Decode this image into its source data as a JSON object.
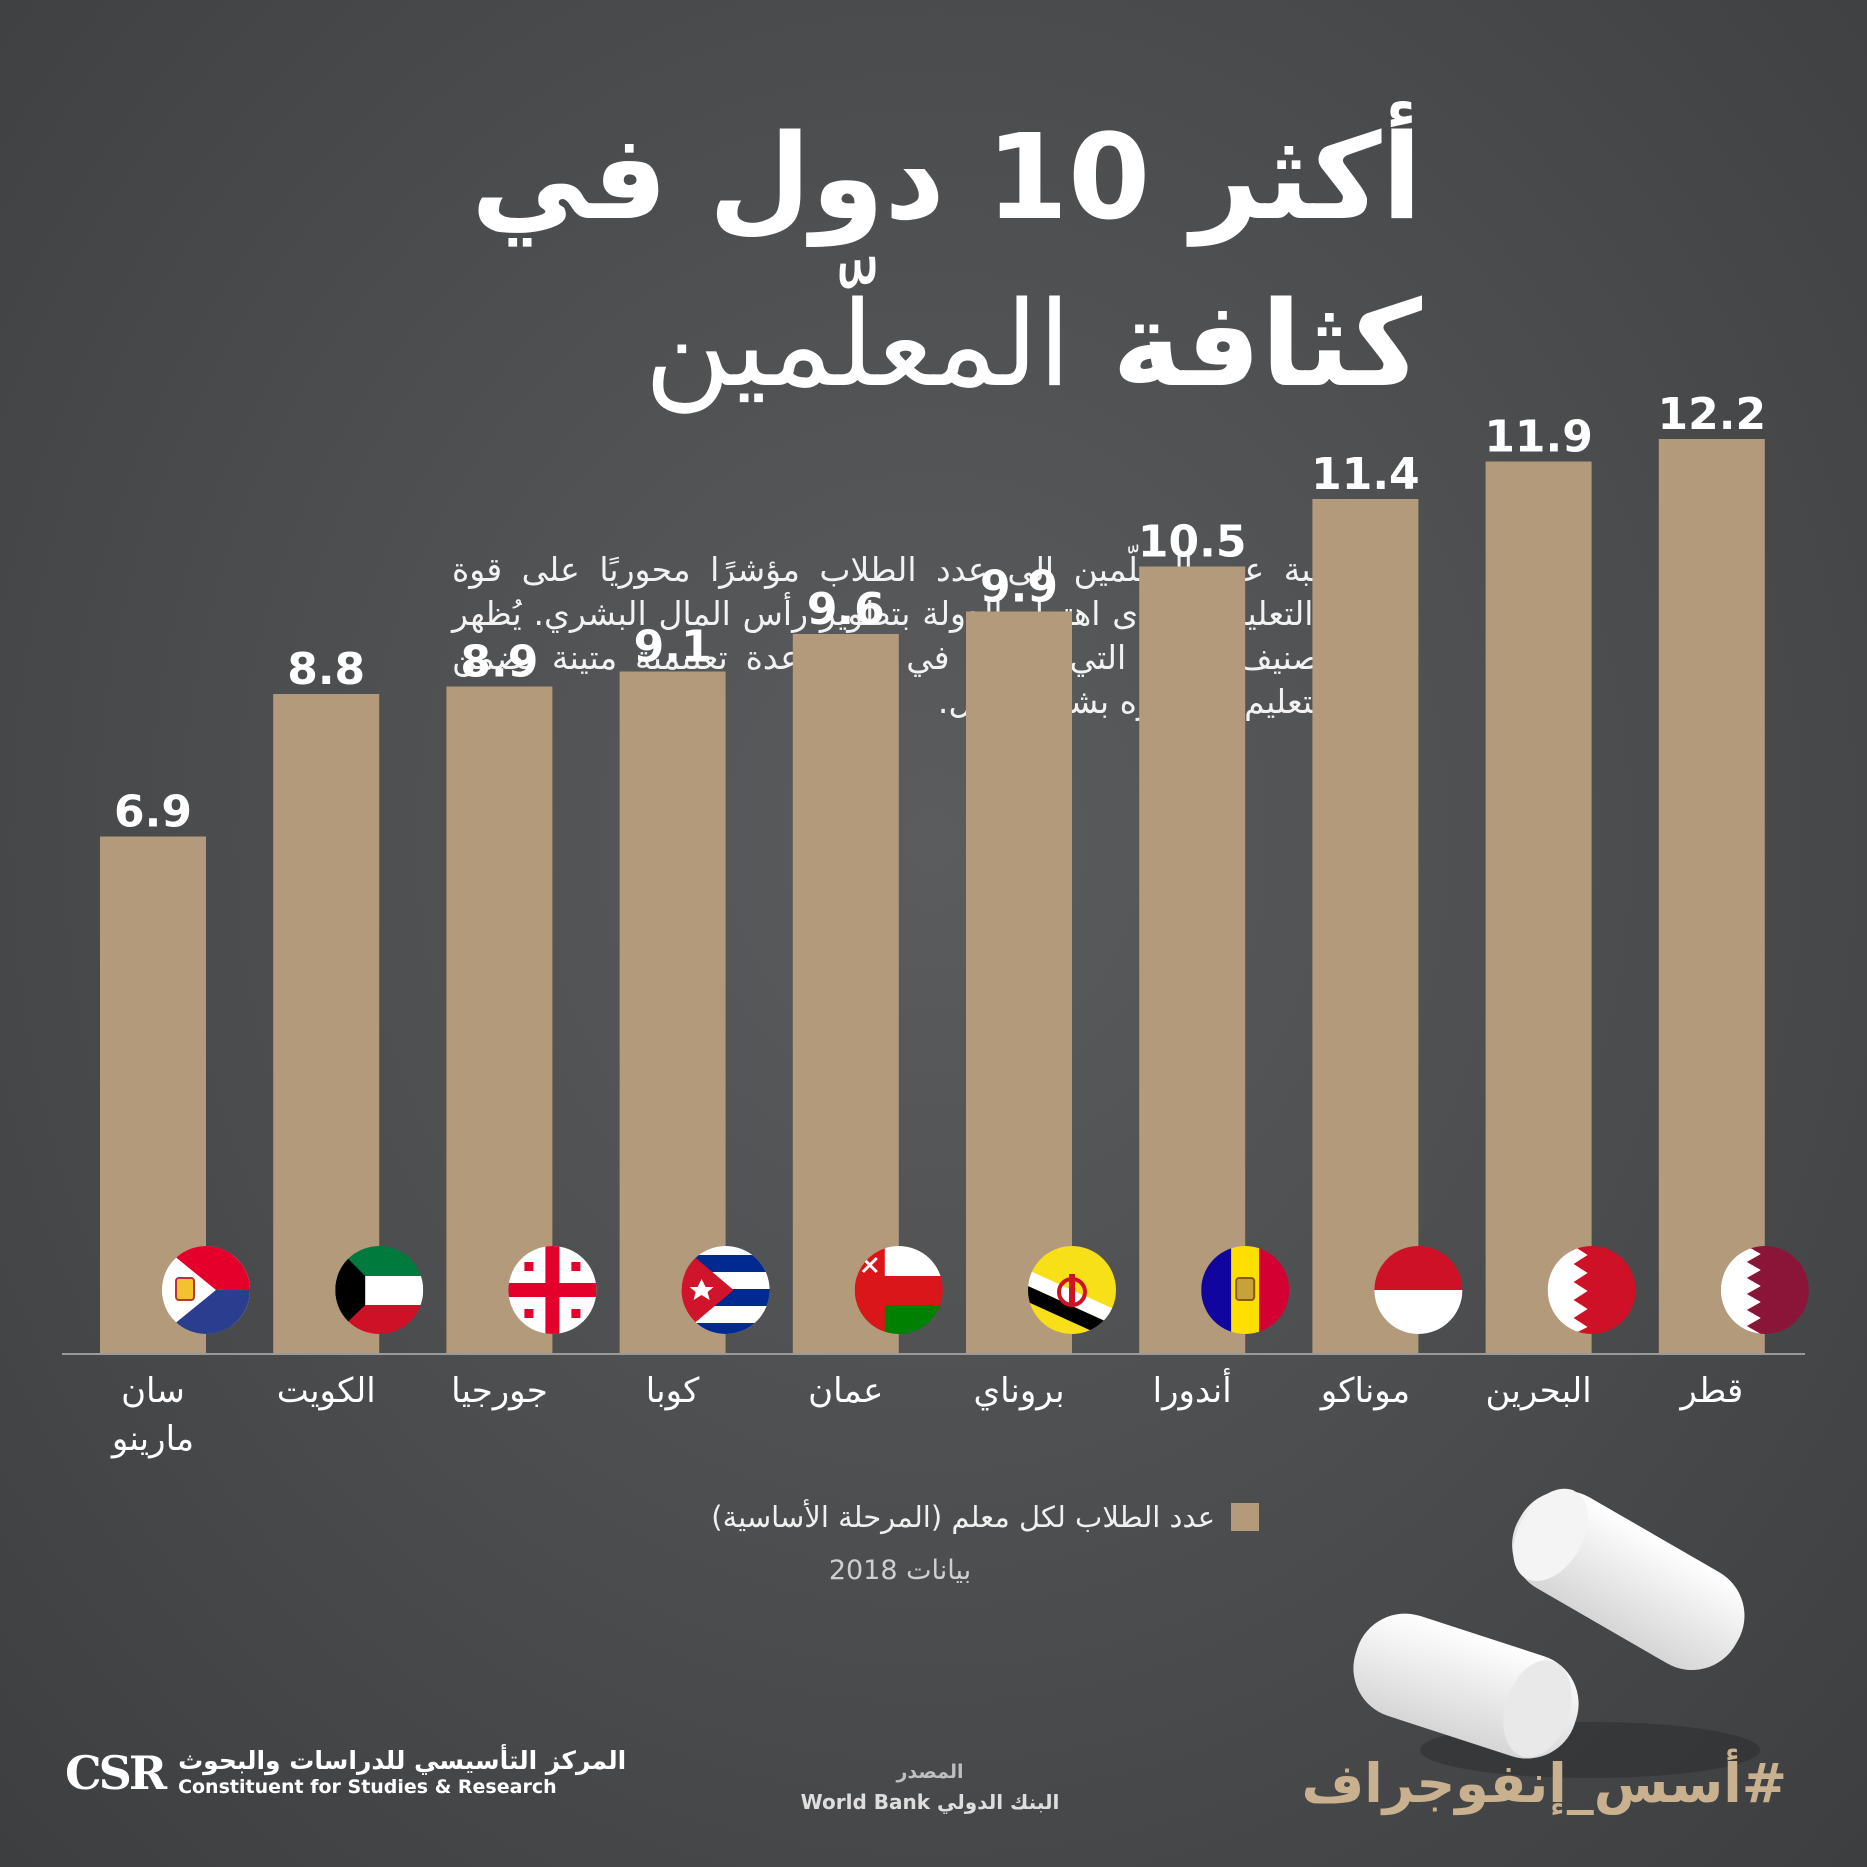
{
  "title": {
    "line1": "أكثر 10 دول في",
    "line2_bold": "كثافة",
    "line2_light": "المعلّمين"
  },
  "description": "تعدّ نسبة عدد المعلّمين إلى عدد الطلاب مؤشرًا محوريًا على قوة النظام التعليمي ومدى اهتمام الدولة بتطوير رأس المال البشري. يُظهر هذا التصنيف الدول التي نجحت في بناء قاعدة تعليمية متينة تضمن جودة التعليم، وتوفيره بشكل عادل.",
  "chart_data": {
    "type": "bar",
    "categories": [
      "سان مارينو",
      "الكويت",
      "جورجيا",
      "كوبا",
      "عمان",
      "بروناي",
      "أندورا",
      "موناكو",
      "البحرين",
      "قطر"
    ],
    "series": [
      {
        "name": "عدد الطلاب لكل معلم (المرحلة الأساسية)",
        "values": [
          6.9,
          8.8,
          8.9,
          9.1,
          9.6,
          9.9,
          10.5,
          11.4,
          11.9,
          12.2
        ]
      }
    ],
    "ylim": [
      0,
      12.2
    ],
    "grid": false,
    "legend_position": "bottom",
    "bar_color": "#b29a7a",
    "category_icons": [
      "san-marino-flag-icon",
      "kuwait-flag-icon",
      "georgia-flag-icon",
      "cuba-flag-icon",
      "oman-flag-icon",
      "brunei-flag-icon",
      "andorra-flag-icon",
      "monaco-flag-icon",
      "bahrain-flag-icon",
      "qatar-flag-icon"
    ]
  },
  "legend": {
    "label": "عدد الطلاب لكل معلم (المرحلة الأساسية)"
  },
  "data_year": "بيانات 2018",
  "footer": {
    "logo_mark": "CSR",
    "org_ar": "المركز التأسيسي للدراسات والبحوث",
    "org_en": "Constituent for Studies & Research",
    "source_label": "المصدر",
    "source_value": "البنك الدولي World Bank",
    "hashtag": "#أسس_إنفوجراف"
  },
  "colors": {
    "background": "#4a4c4e",
    "bar": "#b29a7a",
    "accent": "#c9b08f"
  }
}
